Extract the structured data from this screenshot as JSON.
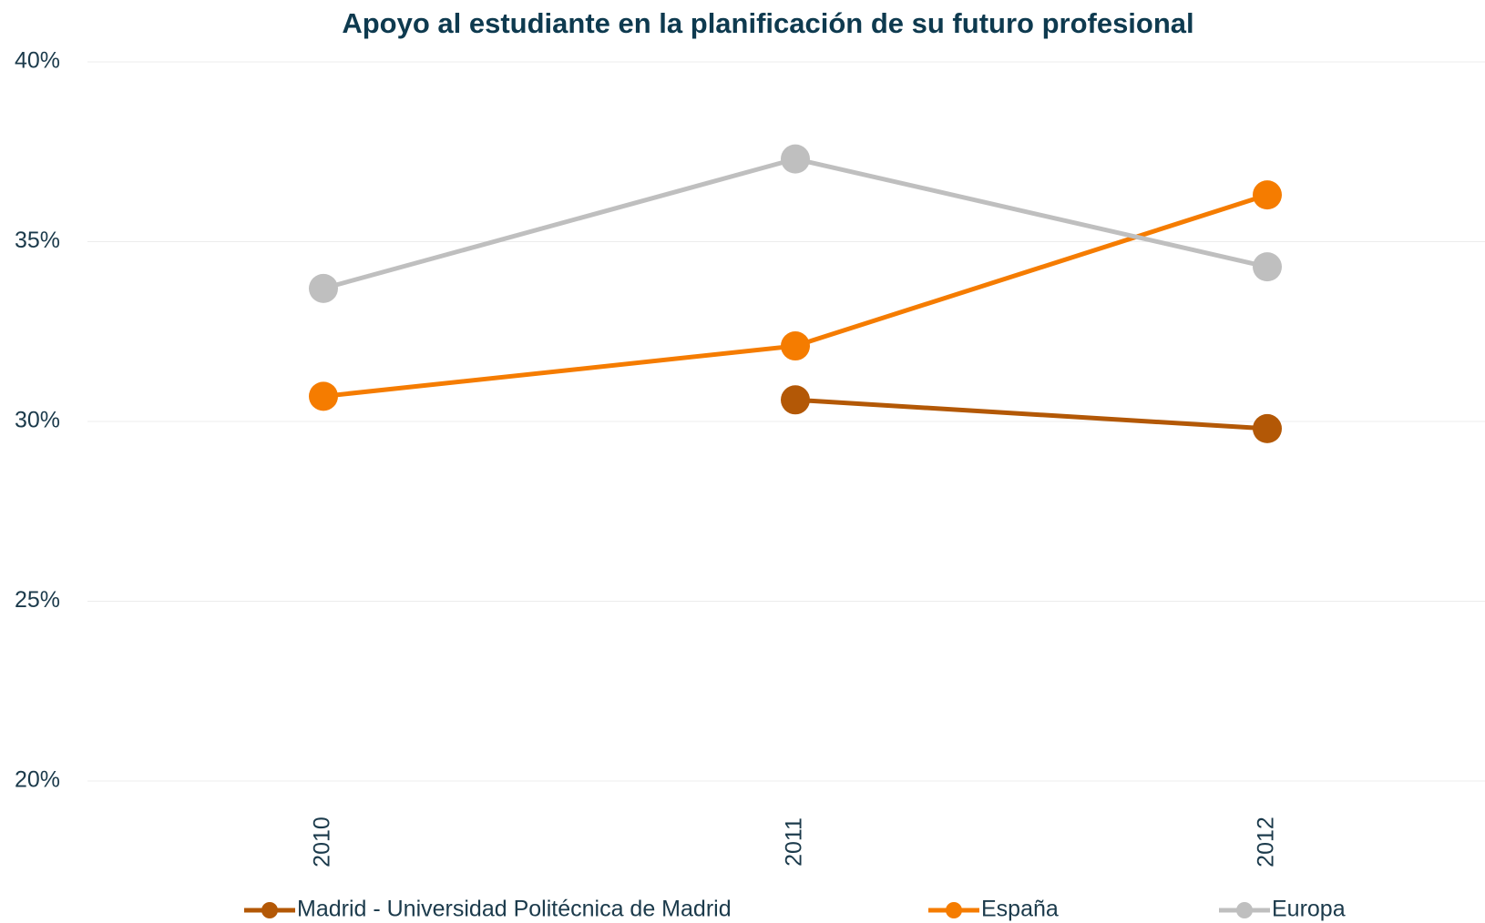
{
  "chart_data": {
    "type": "line",
    "title": "Apoyo al estudiante en la planificación de su futuro profesional",
    "categories": [
      "2010",
      "2011",
      "2012"
    ],
    "series": [
      {
        "name": "Madrid - Universidad Politécnica de Madrid",
        "color": "#b35806",
        "values": [
          null,
          30.6,
          29.8
        ]
      },
      {
        "name": "España",
        "color": "#f57c00",
        "values": [
          30.7,
          32.1,
          36.3
        ]
      },
      {
        "name": "Europa",
        "color": "#bfbfbf",
        "values": [
          33.7,
          37.3,
          34.3
        ]
      }
    ],
    "ylim": [
      20,
      40
    ],
    "yticks": [
      {
        "value": 20,
        "label": "20%"
      },
      {
        "value": 25,
        "label": "25%"
      },
      {
        "value": 30,
        "label": "30%"
      },
      {
        "value": 35,
        "label": "35%"
      },
      {
        "value": 40,
        "label": "40%"
      }
    ],
    "grid": true,
    "legend": "bottom"
  }
}
